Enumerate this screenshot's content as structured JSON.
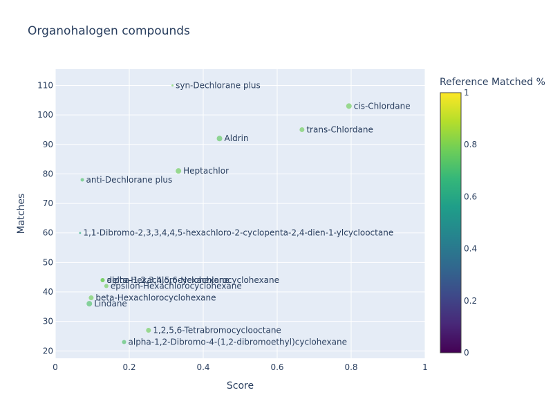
{
  "chart_data": {
    "type": "scatter",
    "title": "Organohalogen compounds",
    "xlabel": "Score",
    "ylabel": "Matches",
    "xlim": [
      0,
      1
    ],
    "ylim": [
      17.5,
      115.5
    ],
    "x_ticks": [
      0,
      0.2,
      0.4,
      0.6,
      0.8,
      1
    ],
    "x_tick_labels": [
      "0",
      "0.2",
      "0.4",
      "0.6",
      "0.8",
      "1"
    ],
    "y_ticks": [
      20,
      30,
      40,
      50,
      60,
      70,
      80,
      90,
      100,
      110
    ],
    "y_tick_labels": [
      "20",
      "30",
      "40",
      "50",
      "60",
      "70",
      "80",
      "90",
      "100",
      "110"
    ],
    "grid": true,
    "colorbar": {
      "title": "Reference Matched %",
      "range": [
        0,
        1
      ],
      "ticks": [
        0,
        0.2,
        0.4,
        0.6,
        0.8,
        1
      ],
      "tick_labels": [
        "0",
        "0.2",
        "0.4",
        "0.6",
        "0.8",
        "1"
      ],
      "colorscale": "viridis"
    },
    "points": [
      {
        "label": "syn-Dechlorane plus",
        "x": 0.317,
        "y": 110,
        "color_value": 0.78,
        "size": 3
      },
      {
        "label": "cis-Chlordane",
        "x": 0.794,
        "y": 103,
        "color_value": 0.78,
        "size": 8
      },
      {
        "label": "trans-Chlordane",
        "x": 0.667,
        "y": 95,
        "color_value": 0.78,
        "size": 7
      },
      {
        "label": "Aldrin",
        "x": 0.444,
        "y": 92,
        "color_value": 0.75,
        "size": 8
      },
      {
        "label": "Heptachlor",
        "x": 0.333,
        "y": 81,
        "color_value": 0.78,
        "size": 8
      },
      {
        "label": "anti-Dechlorane plus",
        "x": 0.073,
        "y": 78,
        "color_value": 0.72,
        "size": 5
      },
      {
        "label": "1,1-Dibromo-2,3,3,4,4,5-hexachloro-2-cyclopenta-2,4-dien-1-ylcyclooctane",
        "x": 0.067,
        "y": 60,
        "color_value": 0.62,
        "size": 3
      },
      {
        "label": "delta-Hexachlorocyclohexane",
        "x": 0.128,
        "y": 44,
        "color_value": 0.78,
        "size": 6
      },
      {
        "label": "alpha-1,2,3,4,5,6-Hexachlorocyclohexane",
        "x": 0.128,
        "y": 44,
        "color_value": 0.78,
        "size": 6
      },
      {
        "label": "epsilon-Hexachlorocyclohexane",
        "x": 0.138,
        "y": 42,
        "color_value": 0.78,
        "size": 6
      },
      {
        "label": "beta-Hexachlorocyclohexane",
        "x": 0.097,
        "y": 38,
        "color_value": 0.78,
        "size": 7
      },
      {
        "label": "Lindane",
        "x": 0.092,
        "y": 36,
        "color_value": 0.72,
        "size": 8
      },
      {
        "label": "1,2,5,6-Tetrabromocyclooctane",
        "x": 0.252,
        "y": 27,
        "color_value": 0.78,
        "size": 7
      },
      {
        "label": "alpha-1,2-Dibromo-4-(1,2-dibromoethyl)cyclohexane",
        "x": 0.186,
        "y": 23,
        "color_value": 0.72,
        "size": 6
      }
    ]
  }
}
